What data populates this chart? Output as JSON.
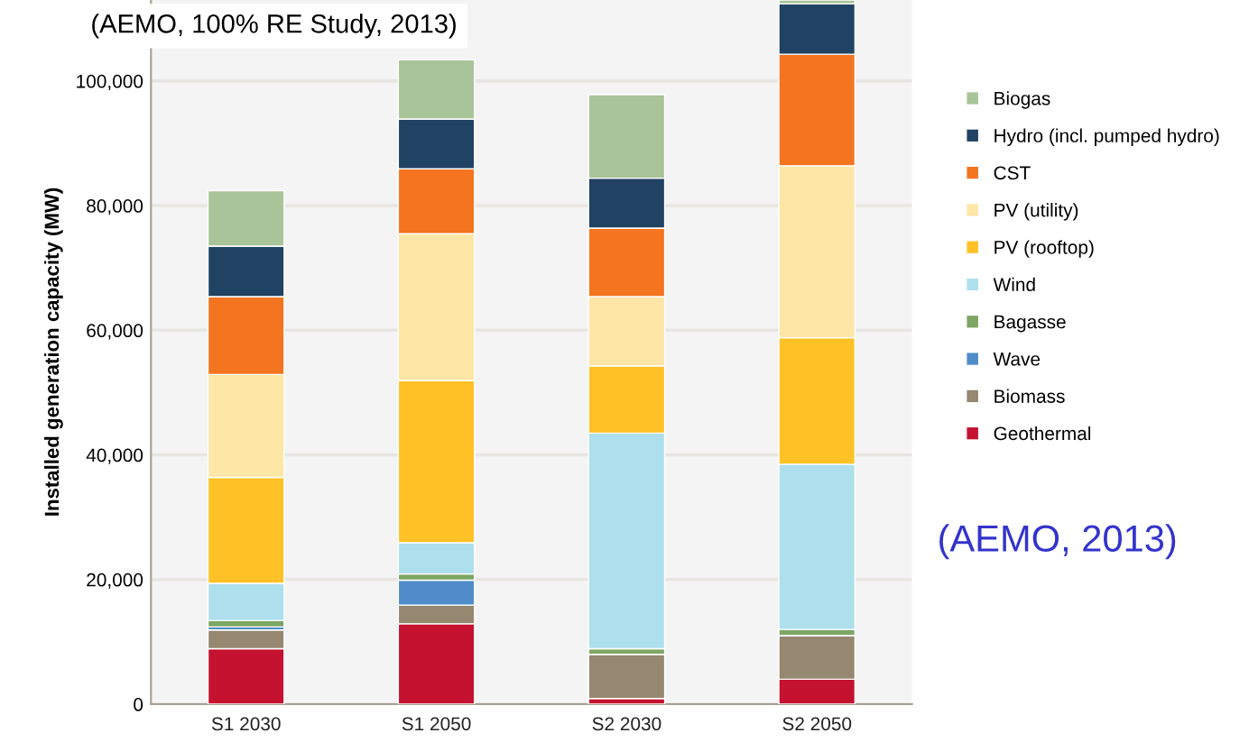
{
  "chart_data": {
    "type": "bar",
    "title": "(AEMO, 100% RE Study, 2013)",
    "ylabel": "Installed generation capacity (MW)",
    "categories": [
      "S1 2030",
      "S1 2050",
      "S2 2030",
      "S2 2050"
    ],
    "stacked": true,
    "ylim": [
      0,
      113000
    ],
    "yticks": [
      {
        "value": 0,
        "label": "0"
      },
      {
        "value": 20000,
        "label": "20,000"
      },
      {
        "value": 40000,
        "label": "40,000"
      },
      {
        "value": 60000,
        "label": "60,000"
      },
      {
        "value": 80000,
        "label": "80,000"
      },
      {
        "value": 100000,
        "label": "100,000"
      }
    ],
    "grid": "y",
    "legend": "right",
    "series": [
      {
        "name": "Geothermal",
        "color": "#c41230",
        "values": [
          8900,
          12900,
          900,
          4000
        ]
      },
      {
        "name": "Biomass",
        "color": "#958770",
        "values": [
          3000,
          3000,
          7100,
          7000
        ]
      },
      {
        "name": "Wave",
        "color": "#4f8cc9",
        "values": [
          500,
          4000,
          0,
          0
        ]
      },
      {
        "name": "Bagasse",
        "color": "#7ea664",
        "values": [
          1000,
          1000,
          900,
          1000
        ]
      },
      {
        "name": "Wind",
        "color": "#aedfec",
        "values": [
          6000,
          5000,
          34600,
          26500
        ]
      },
      {
        "name": "PV (rooftop)",
        "color": "#ffc125",
        "values": [
          17000,
          26000,
          10800,
          20300
        ]
      },
      {
        "name": "PV (utility)",
        "color": "#fee6a6",
        "values": [
          16500,
          23600,
          11100,
          27600
        ]
      },
      {
        "name": "CST",
        "color": "#f47420",
        "values": [
          12500,
          10400,
          11000,
          17900
        ]
      },
      {
        "name": "Hydro (incl. pumped hydro)",
        "color": "#204263",
        "values": [
          8100,
          8000,
          8000,
          8100
        ]
      },
      {
        "name": "Biogas",
        "color": "#a9c498",
        "values": [
          8900,
          9500,
          13400,
          600
        ]
      }
    ],
    "annotations": [
      "(AEMO, 2013)"
    ]
  }
}
